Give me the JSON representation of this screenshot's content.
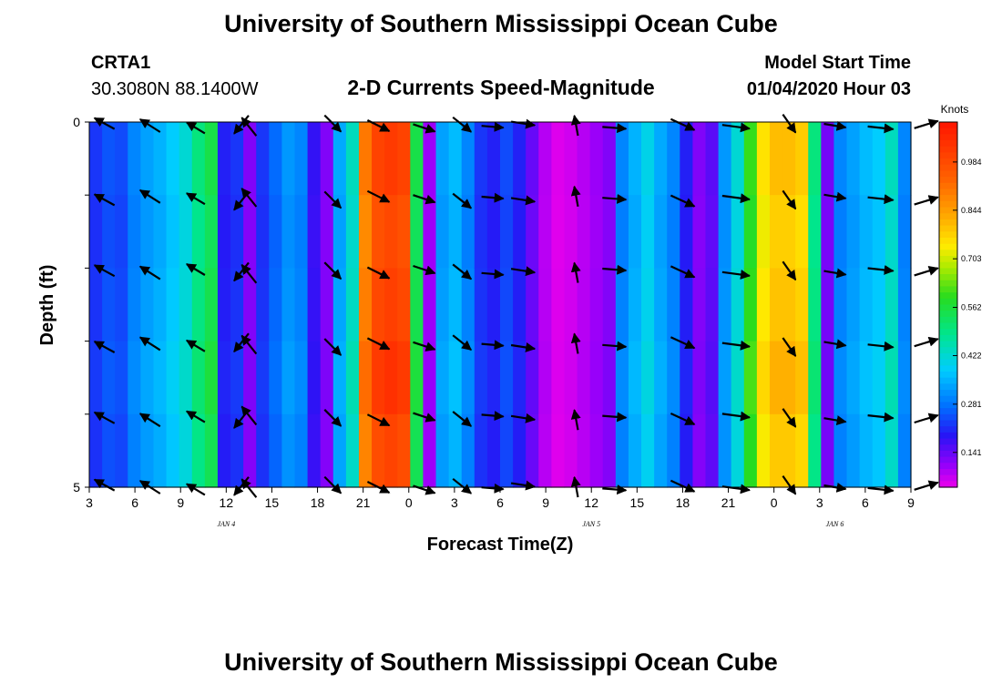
{
  "header": {
    "title": "University of Southern Mississippi Ocean Cube",
    "station": "CRTA1",
    "coordinates": "30.3080N 88.1400W",
    "product": "2-D Currents Speed-Magnitude",
    "model_start_label": "Model Start Time",
    "model_start_value": "01/04/2020 Hour 03"
  },
  "footer": {
    "title": "University of Southern Mississippi Ocean Cube"
  },
  "chart_data": {
    "type": "heatmap",
    "xlabel": "Forecast Time(Z)",
    "ylabel": "Depth (ft)",
    "x_ticks": [
      "3",
      "6",
      "9",
      "12",
      "15",
      "18",
      "21",
      "0",
      "3",
      "6",
      "9",
      "12",
      "15",
      "18",
      "21",
      "0",
      "3",
      "6",
      "9"
    ],
    "day_labels": [
      {
        "label": "JAN 4",
        "at_hour": 12
      },
      {
        "label": "JAN 5",
        "at_hour": 36
      },
      {
        "label": "JAN 6",
        "at_hour": 52
      }
    ],
    "y_ticks": [
      "0",
      "5"
    ],
    "ylim": [
      0,
      5
    ],
    "xlim_hours_from_jan4_00z": [
      3,
      57
    ],
    "colorbar": {
      "units": "Knots",
      "tick_labels": [
        "0.984",
        "0.844",
        "0.703",
        "0.562",
        "0.422",
        "0.281",
        "0.141"
      ],
      "range": [
        0.04,
        1.1
      ]
    },
    "speed_columns_knots": [
      0.22,
      0.25,
      0.24,
      0.3,
      0.33,
      0.35,
      0.38,
      0.42,
      0.5,
      0.55,
      0.2,
      0.22,
      0.12,
      0.22,
      0.27,
      0.32,
      0.3,
      0.18,
      0.12,
      0.34,
      0.44,
      0.9,
      1.0,
      1.02,
      1.0,
      0.55,
      0.1,
      0.33,
      0.36,
      0.3,
      0.22,
      0.2,
      0.24,
      0.2,
      0.14,
      0.08,
      0.05,
      0.06,
      0.08,
      0.1,
      0.12,
      0.3,
      0.35,
      0.4,
      0.34,
      0.3,
      0.2,
      0.12,
      0.15,
      0.32,
      0.42,
      0.6,
      0.75,
      0.8,
      0.8,
      0.78,
      0.5,
      0.13,
      0.3,
      0.33,
      0.36,
      0.38,
      0.44,
      0.3
    ],
    "vectors": {
      "times_hours": [
        4,
        7,
        10,
        13,
        13.5,
        19,
        22,
        25,
        27.5,
        29.5,
        31.5,
        35,
        37.5,
        42,
        45.5,
        49,
        52,
        55,
        58
      ],
      "depths_ft": [
        0.05,
        1.05,
        2.05,
        3.05,
        4.05,
        5.0
      ]
    }
  }
}
